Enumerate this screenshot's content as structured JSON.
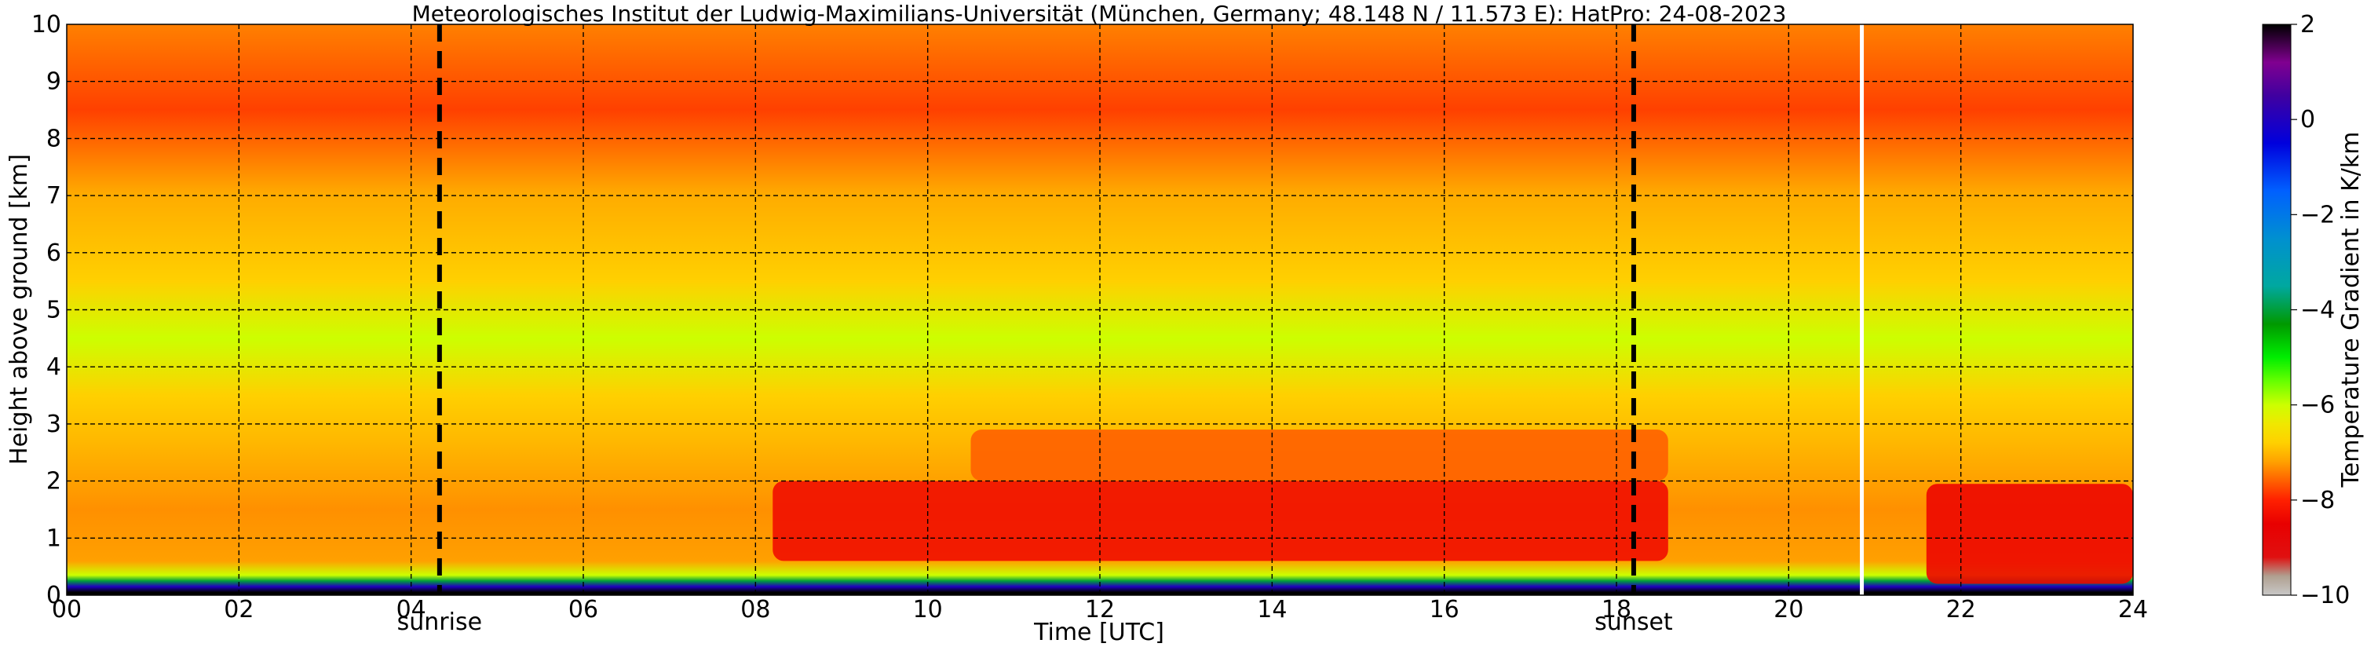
{
  "chart_data": {
    "type": "heatmap",
    "title": "Meteorologisches Institut der Ludwig-Maximilians-Universität (München, Germany; 48.148 N / 11.573 E):    HatPro: 24-08-2023",
    "xlabel": "Time [UTC]",
    "ylabel": "Height above ground [km]",
    "xlim": [
      0,
      24
    ],
    "ylim": [
      0,
      10
    ],
    "x_ticks": [
      "00",
      "02",
      "04",
      "06",
      "08",
      "10",
      "12",
      "14",
      "16",
      "18",
      "20",
      "22",
      "24"
    ],
    "y_ticks": [
      "0",
      "1",
      "2",
      "3",
      "4",
      "5",
      "6",
      "7",
      "8",
      "9",
      "10"
    ],
    "grid": true,
    "colorbar": {
      "label": "Temperature Gradient in K/km",
      "range": [
        -10,
        2
      ],
      "ticks": [
        "2",
        "0",
        "−2",
        "−4",
        "−6",
        "−8",
        "−10"
      ]
    },
    "markers": [
      {
        "label": "sunrise",
        "x": 4.33
      },
      {
        "label": "sunset",
        "x": 18.2
      }
    ],
    "data_gap_x": 20.85,
    "gradient_profile": [
      {
        "height_km": 0.05,
        "value": 2
      },
      {
        "height_km": 0.15,
        "value": 0
      },
      {
        "height_km": 0.25,
        "value": -4
      },
      {
        "height_km": 0.35,
        "value": -6
      },
      {
        "height_km": 0.6,
        "value": -7.2
      },
      {
        "height_km": 1.5,
        "value": -7.3
      },
      {
        "height_km": 2.7,
        "value": -7
      },
      {
        "height_km": 3.5,
        "value": -6.8
      },
      {
        "height_km": 4.5,
        "value": -6.0
      },
      {
        "height_km": 5.5,
        "value": -6.8
      },
      {
        "height_km": 7.0,
        "value": -7.1
      },
      {
        "height_km": 8.5,
        "value": -7.8
      },
      {
        "height_km": 10,
        "value": -7.4
      }
    ],
    "regions": [
      {
        "t_from": 8.2,
        "t_to": 18.6,
        "h_from": 0.6,
        "h_to": 2.0,
        "value": -8.3
      },
      {
        "t_from": 10.5,
        "t_to": 18.6,
        "h_from": 2.0,
        "h_to": 2.9,
        "value": -7.6
      },
      {
        "t_from": 21.6,
        "t_to": 24.0,
        "h_from": 0.2,
        "h_to": 1.95,
        "value": -8.4
      }
    ]
  }
}
